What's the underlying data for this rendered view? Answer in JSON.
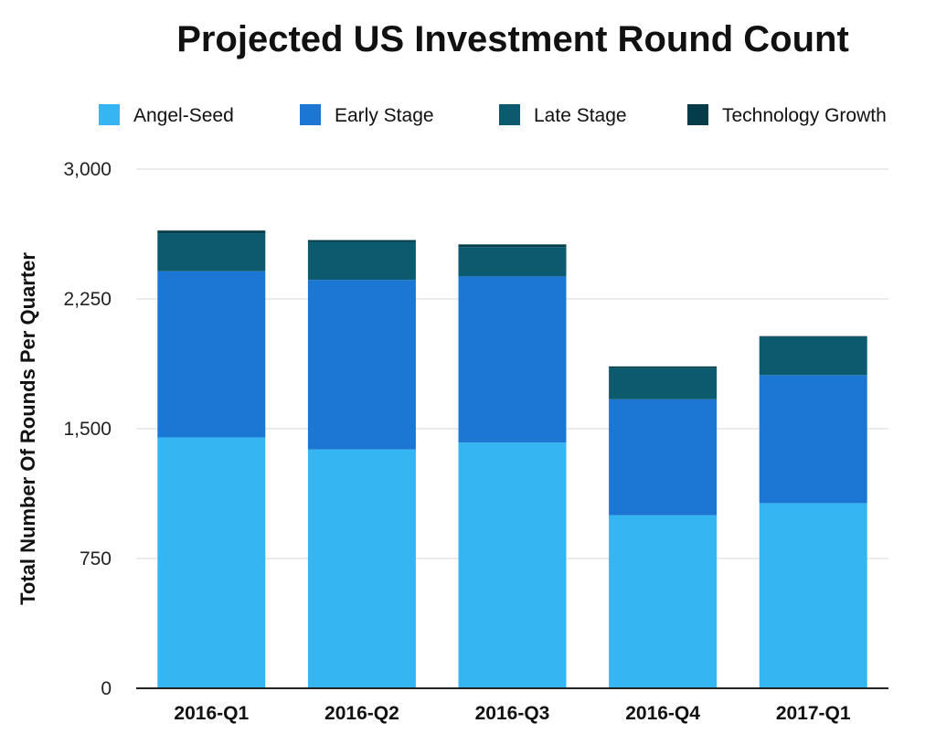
{
  "chart_data": {
    "type": "bar",
    "stacked": true,
    "title": "Projected US Investment Round Count",
    "xlabel": "",
    "ylabel": "Total Number Of Rounds Per Quarter",
    "ylim": [
      0,
      3000
    ],
    "yticks": [
      0,
      750,
      1500,
      2250,
      3000
    ],
    "ytick_labels": [
      "0",
      "750",
      "1,500",
      "2,250",
      "3,000"
    ],
    "grid": true,
    "legend_position": "top",
    "categories": [
      "2016-Q1",
      "2016-Q2",
      "2016-Q3",
      "2016-Q4",
      "2017-Q1"
    ],
    "series": [
      {
        "name": "Angel-Seed",
        "color": "#35b6f2",
        "values": [
          1450,
          1380,
          1420,
          1000,
          1070
        ]
      },
      {
        "name": "Early Stage",
        "color": "#1b76d4",
        "values": [
          960,
          980,
          960,
          670,
          740
        ]
      },
      {
        "name": "Late Stage",
        "color": "#0b5a6e",
        "values": [
          220,
          220,
          170,
          180,
          220
        ]
      },
      {
        "name": "Technology Growth",
        "color": "#053c49",
        "values": [
          15,
          10,
          15,
          10,
          5
        ]
      }
    ]
  }
}
